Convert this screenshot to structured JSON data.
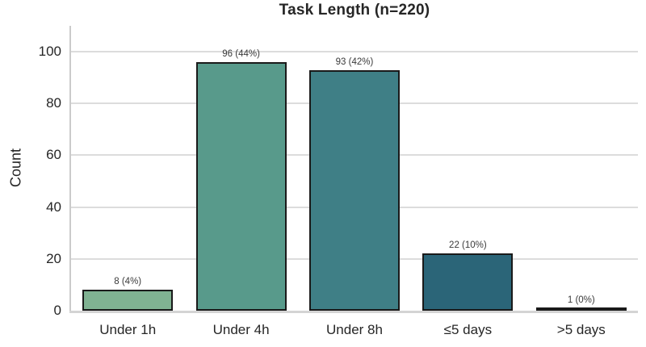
{
  "chart_data": {
    "type": "bar",
    "title": "Task Length (n=220)",
    "xlabel": "",
    "ylabel": "Count",
    "categories": [
      "Under 1h",
      "Under 4h",
      "Under 8h",
      "≤5 days",
      ">5 days"
    ],
    "values": [
      8,
      96,
      93,
      22,
      1
    ],
    "bar_labels": [
      "8 (4%)",
      "96 (44%)",
      "93 (42%)",
      "22 (10%)",
      "1 (0%)"
    ],
    "total_n": 220,
    "ylim": [
      0,
      110
    ],
    "yticks": [
      0,
      20,
      40,
      60,
      80,
      100
    ],
    "grid": "horizontal",
    "legend": "none",
    "bar_colors": [
      "#80b292",
      "#589a8b",
      "#3f7f86",
      "#2b6578",
      "#1d4a63"
    ],
    "bar_edge_color": "#1a1a1a",
    "grid_color": "#dcdcdc",
    "spine_color": "#cbcbcb",
    "background_color": "#ffffff",
    "title_color": "#262626",
    "tick_color": "#262626",
    "value_label_color": "#3a3a3a"
  }
}
